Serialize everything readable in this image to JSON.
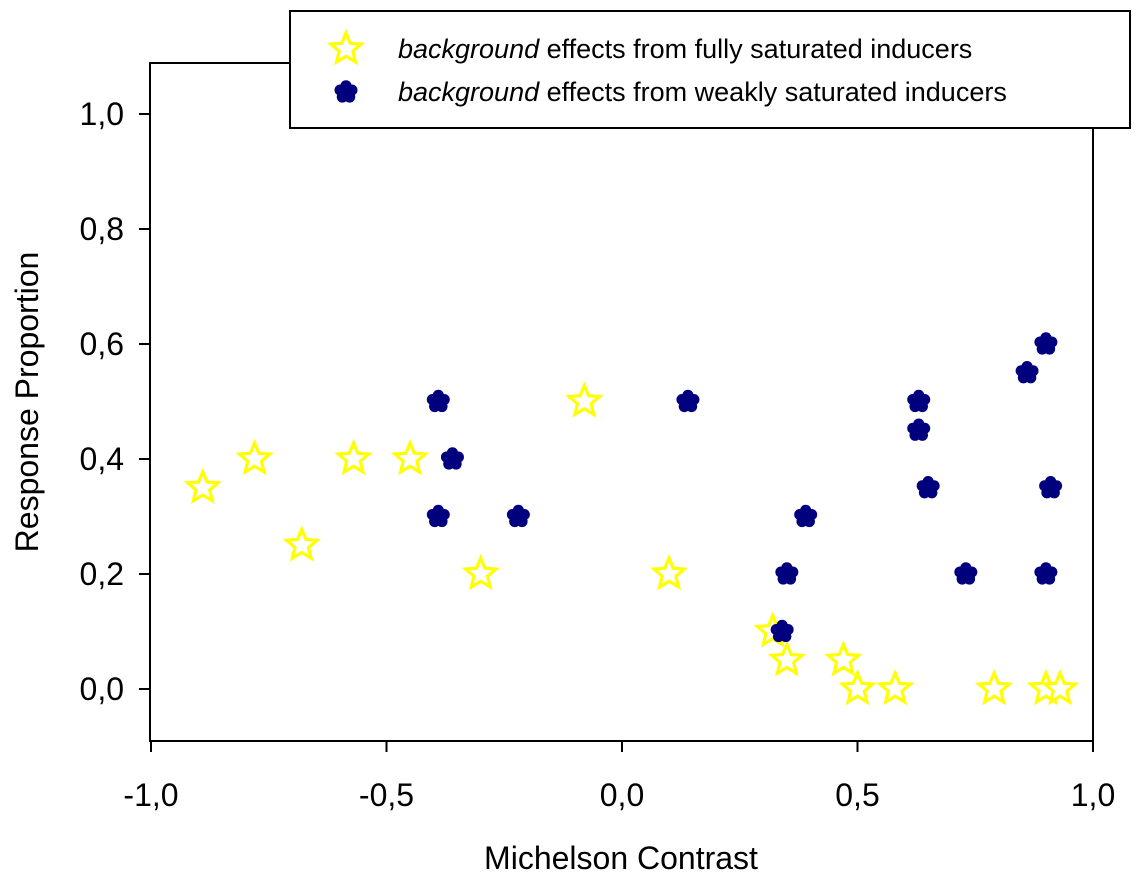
{
  "chart_data": {
    "type": "scatter",
    "xlabel": "Michelson Contrast",
    "ylabel": "Response Proportion",
    "xlim": [
      -1.0,
      1.0
    ],
    "ylim": [
      -0.09,
      1.09
    ],
    "x_ticks": [
      -1.0,
      -0.5,
      0.0,
      0.5,
      1.0
    ],
    "x_tick_labels": [
      "-1,0",
      "-0,5",
      "0,0",
      "0,5",
      "1,0"
    ],
    "y_ticks": [
      0.0,
      0.2,
      0.4,
      0.6,
      0.8,
      1.0
    ],
    "y_tick_labels": [
      "0,0",
      "0,2",
      "0,4",
      "0,6",
      "0,8",
      "1,0"
    ],
    "grid": false,
    "legend_position": "top-right",
    "series": [
      {
        "name_emphasis": "background",
        "name_rest": " effects from fully saturated inducers",
        "marker": "star-outline",
        "color": "#ffff00",
        "outline": "#e8e800",
        "points": [
          [
            -0.89,
            0.35
          ],
          [
            -0.78,
            0.4
          ],
          [
            -0.68,
            0.25
          ],
          [
            -0.57,
            0.4
          ],
          [
            -0.45,
            0.4
          ],
          [
            -0.3,
            0.2
          ],
          [
            -0.08,
            0.5
          ],
          [
            0.1,
            0.2
          ],
          [
            0.32,
            0.1
          ],
          [
            0.35,
            0.05
          ],
          [
            0.47,
            0.05
          ],
          [
            0.5,
            0.0
          ],
          [
            0.58,
            0.0
          ],
          [
            0.79,
            0.0
          ],
          [
            0.9,
            0.0
          ],
          [
            0.93,
            0.0
          ]
        ]
      },
      {
        "name_emphasis": "background",
        "name_rest": " effects from weakly saturated inducers",
        "marker": "flower",
        "color": "#00007f",
        "points": [
          [
            -0.39,
            0.5
          ],
          [
            -0.36,
            0.4
          ],
          [
            -0.39,
            0.3
          ],
          [
            -0.22,
            0.3
          ],
          [
            0.14,
            0.5
          ],
          [
            0.35,
            0.2
          ],
          [
            0.34,
            0.1
          ],
          [
            0.39,
            0.3
          ],
          [
            0.63,
            0.5
          ],
          [
            0.63,
            0.45
          ],
          [
            0.65,
            0.35
          ],
          [
            0.73,
            0.2
          ],
          [
            0.86,
            0.55
          ],
          [
            0.9,
            0.6
          ],
          [
            0.91,
            0.35
          ],
          [
            0.9,
            0.2
          ]
        ]
      }
    ]
  }
}
